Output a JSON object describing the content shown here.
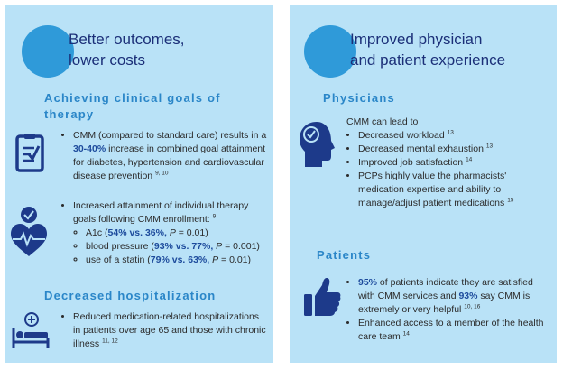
{
  "left": {
    "title_line1": "Better outcomes,",
    "title_line2": "lower costs",
    "section1_heading_line1": "Achieving clinical goals of",
    "section1_heading_line2": "therapy",
    "b1_pre": "CMM (compared to standard care) results in a ",
    "b1_hl": "30-40%",
    "b1_post": " increase in combined goal attainment for diabetes, hypertension and cardiovascular disease prevention ",
    "b1_ref": "9, 10",
    "b2_text": "Increased attainment of individual therapy goals following CMM enrollment: ",
    "b2_ref": "9",
    "sub1_pre": "A1c (",
    "sub1_hl": "54% vs. 36%,",
    "sub1_p": " P",
    "sub1_post": " = 0.01)",
    "sub2_pre": "blood pressure (",
    "sub2_hl": "93% vs. 77%,",
    "sub2_p": " P",
    "sub2_post": " = 0.001)",
    "sub3_pre": "use of a statin (",
    "sub3_hl": "79% vs. 63%,",
    "sub3_p": " P",
    "sub3_post": " = 0.01)",
    "section2_heading": "Decreased hospitalization",
    "b3_text": "Reduced medication-related hospitalizations in patients over age 65 and those with chronic illness ",
    "b3_ref": "11, 12"
  },
  "right": {
    "title_line1": "Improved physician",
    "title_line2": "and patient experience",
    "physicians_heading": "Physicians",
    "intro": "CMM can lead to",
    "p1": "Decreased workload ",
    "p1_ref": "13",
    "p2": "Decreased mental exhaustion ",
    "p2_ref": "13",
    "p3": "Improved job satisfaction ",
    "p3_ref": "14",
    "p4": "PCPs highly value the pharmacists' medication expertise and ability to manage/adjust patient medications ",
    "p4_ref": "15",
    "patients_heading": "Patients",
    "pt1_hl1": "95%",
    "pt1_mid": " of patients indicate they are satisfied with CMM services and ",
    "pt1_hl2": "93%",
    "pt1_post": " say CMM is extremely or very helpful ",
    "pt1_ref": "10, 16",
    "pt2": "Enhanced access to a member of the health care team ",
    "pt2_ref": "14"
  },
  "colors": {
    "panel": "#b9e2f7",
    "circle": "#2f9ad9",
    "title": "#1b2f78",
    "heading": "#2a86c8",
    "icon": "#1d3a8a",
    "highlight": "#1d4b9c"
  },
  "icons": [
    "clipboard-check-icon",
    "heart-check-icon",
    "hospital-bed-icon",
    "head-check-icon",
    "thumbs-up-icon"
  ]
}
